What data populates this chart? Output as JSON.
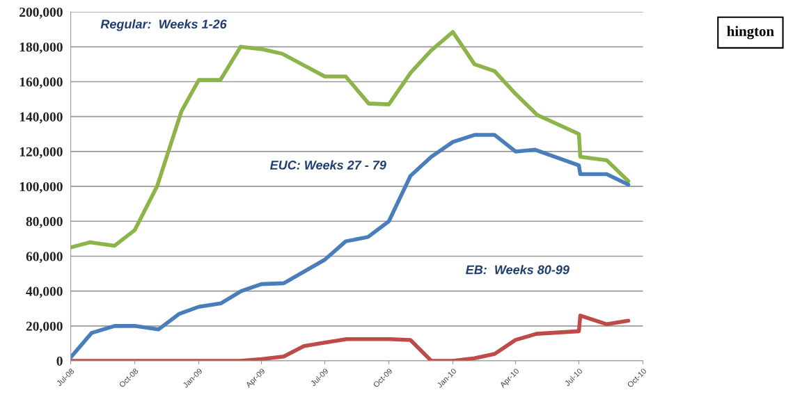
{
  "chart_data": {
    "type": "line",
    "xlim": [
      "2008-07-01",
      "2010-10-01"
    ],
    "xticks": [
      {
        "value": "2008-07-01",
        "label": "Jul-08"
      },
      {
        "value": "2008-10-01",
        "label": "Oct-08"
      },
      {
        "value": "2009-01-01",
        "label": "Jan-09"
      },
      {
        "value": "2009-04-01",
        "label": "Apr-09"
      },
      {
        "value": "2009-07-01",
        "label": "Jul-09"
      },
      {
        "value": "2009-10-01",
        "label": "Oct-09"
      },
      {
        "value": "2010-01-01",
        "label": "Jan-10"
      },
      {
        "value": "2010-04-01",
        "label": "Apr-10"
      },
      {
        "value": "2010-07-01",
        "label": "Jul-10"
      },
      {
        "value": "2010-10-01",
        "label": "Oct-10"
      }
    ],
    "ylim": [
      0,
      200000
    ],
    "yticks": [
      0,
      {
        "value": 20000,
        "label": "20,000"
      },
      {
        "value": 40000,
        "label": "40,000"
      },
      {
        "value": 60000,
        "label": "60,000"
      },
      {
        "value": 80000,
        "label": "80,000"
      },
      {
        "value": 100000,
        "label": "100,000"
      },
      {
        "value": 120000,
        "label": "120,000"
      },
      {
        "value": 140000,
        "label": "140,000"
      },
      {
        "value": 160000,
        "label": "160,000"
      },
      {
        "value": 180000,
        "label": "180,000"
      },
      {
        "value": 200000,
        "label": "200,000"
      }
    ],
    "grid": "y",
    "marker": "none",
    "line_style": "solid",
    "series": [
      {
        "color": "#8db44a",
        "x": [
          "2008-07-01",
          "2008-07-29",
          "2008-09-02",
          "2008-10-01",
          "2008-11-02",
          "2008-12-07",
          "2009-01-01",
          "2009-02-01",
          "2009-03-02",
          "2009-04-03",
          "2009-05-01",
          "2009-05-29",
          "2009-07-01",
          "2009-07-31",
          "2009-09-02",
          "2009-10-01",
          "2009-11-01",
          "2009-12-01",
          "2010-01-01",
          "2010-02-01",
          "2010-03-02",
          "2010-04-01",
          "2010-05-02",
          "2010-07-01",
          "2010-07-03",
          "2010-08-10",
          "2010-09-10"
        ],
        "values": [
          65000,
          68000,
          66000,
          75000,
          100000,
          143000,
          161000,
          161000,
          180000,
          178500,
          176000,
          170000,
          163000,
          163000,
          147500,
          147000,
          165000,
          178000,
          188500,
          170000,
          166000,
          153000,
          141000,
          130000,
          117000,
          115000,
          103000
        ]
      },
      {
        "color": "#4a7ebb",
        "x": [
          "2008-07-01",
          "2008-07-31",
          "2008-09-02",
          "2008-10-01",
          "2008-11-04",
          "2008-12-04",
          "2009-01-01",
          "2009-02-02",
          "2009-03-03",
          "2009-04-01",
          "2009-05-03",
          "2009-07-01",
          "2009-07-31",
          "2009-09-01",
          "2009-10-01",
          "2009-11-01",
          "2009-12-01",
          "2010-01-01",
          "2010-02-01",
          "2010-03-02",
          "2010-04-01",
          "2010-04-29",
          "2010-07-01",
          "2010-07-03",
          "2010-08-10",
          "2010-09-10"
        ],
        "values": [
          2000,
          16000,
          20000,
          20000,
          18000,
          27000,
          31000,
          33000,
          40000,
          44000,
          44500,
          58000,
          68500,
          71000,
          80000,
          106000,
          117000,
          125500,
          129500,
          129500,
          120000,
          121000,
          112000,
          107000,
          107000,
          101000
        ]
      },
      {
        "color": "#be4b48",
        "x": [
          "2008-07-01",
          "2009-03-01",
          "2009-04-01",
          "2009-05-03",
          "2009-06-01",
          "2009-07-01",
          "2009-08-01",
          "2009-09-01",
          "2009-10-01",
          "2009-11-01",
          "2009-12-01",
          "2010-01-01",
          "2010-02-01",
          "2010-03-02",
          "2010-04-01",
          "2010-05-01",
          "2010-07-01",
          "2010-07-03",
          "2010-08-10",
          "2010-09-10"
        ],
        "values": [
          0,
          0,
          1000,
          2500,
          8500,
          10500,
          12500,
          12500,
          12500,
          12000,
          0,
          0,
          1500,
          4000,
          12000,
          15500,
          17000,
          26000,
          21000,
          23000
        ]
      }
    ],
    "annotations": [
      "Regular:  Weeks 1-26",
      "EUC: Weeks 27 - 79",
      "EB:  Weeks 80-99",
      "hington"
    ]
  }
}
